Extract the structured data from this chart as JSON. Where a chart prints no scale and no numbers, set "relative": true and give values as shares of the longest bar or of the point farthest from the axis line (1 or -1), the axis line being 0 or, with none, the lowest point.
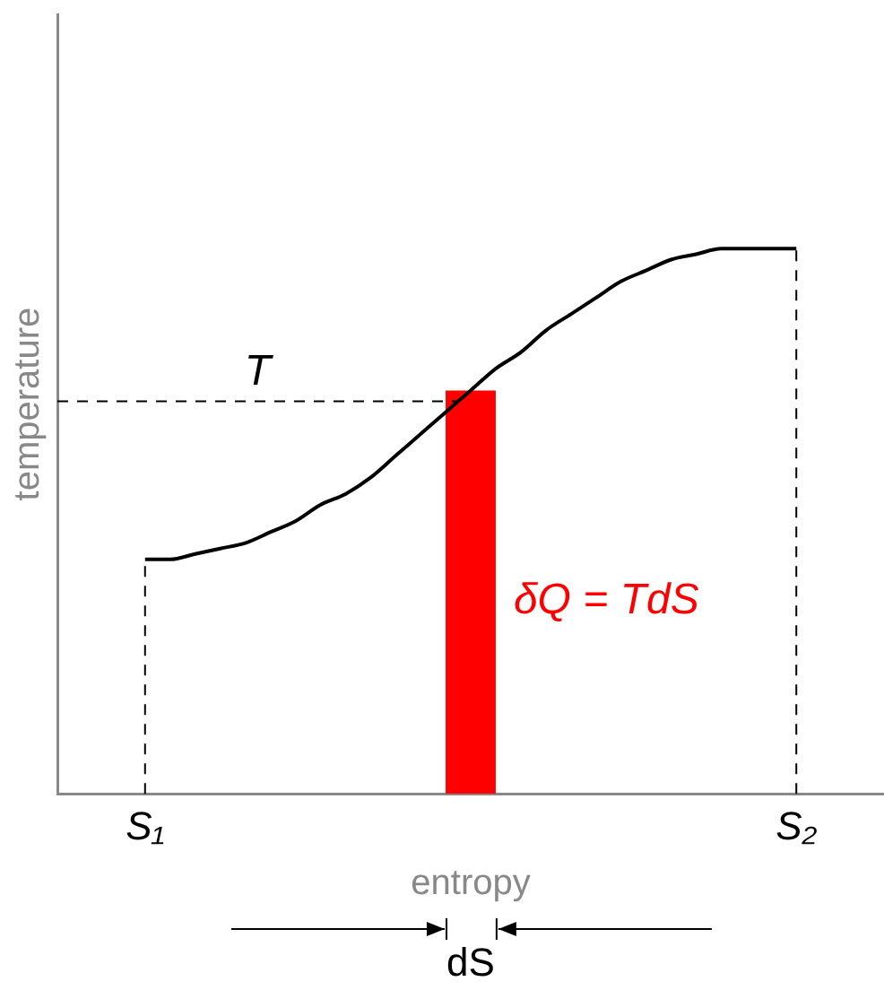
{
  "chart_data": {
    "type": "line",
    "relative": true,
    "xlabel": "entropy",
    "ylabel": "temperature",
    "marker": "none",
    "categories": [
      null,
      null,
      null,
      "S₁",
      null,
      null,
      null,
      null,
      null,
      null,
      null,
      null,
      null,
      null,
      null,
      null,
      null,
      null,
      null,
      null,
      null,
      null,
      null,
      null,
      null,
      null,
      null,
      null,
      null,
      "S₂",
      null,
      null,
      null
    ],
    "series": [
      {
        "color": "#000000",
        "values": [
          null,
          null,
          null,
          0.43,
          0.43,
          0.44,
          0.45,
          0.46,
          0.48,
          0.5,
          0.53,
          0.55,
          0.58,
          0.62,
          0.66,
          0.7,
          0.74,
          0.78,
          0.81,
          0.85,
          0.88,
          0.91,
          0.94,
          0.96,
          0.98,
          0.99,
          1,
          1,
          1,
          1,
          null,
          null,
          null
        ]
      },
      {
        "type": "bar",
        "color": "#ff0000",
        "values": [
          null,
          null,
          null,
          null,
          null,
          null,
          null,
          null,
          null,
          null,
          null,
          null,
          null,
          null,
          null,
          null,
          0.74,
          null,
          null,
          null,
          null,
          null,
          null,
          null,
          null,
          null,
          null,
          null,
          null,
          null,
          null,
          null,
          null
        ]
      }
    ],
    "ref_lines": [
      {
        "axis": "y",
        "value": 0.72,
        "label": "T",
        "line_style": "dashed"
      },
      {
        "axis": "x",
        "value": "S₁",
        "line_style": "dashed"
      },
      {
        "axis": "x",
        "value": "S₂",
        "line_style": "dashed"
      }
    ],
    "annotations": [
      "δQ = TdS",
      "dS"
    ]
  }
}
